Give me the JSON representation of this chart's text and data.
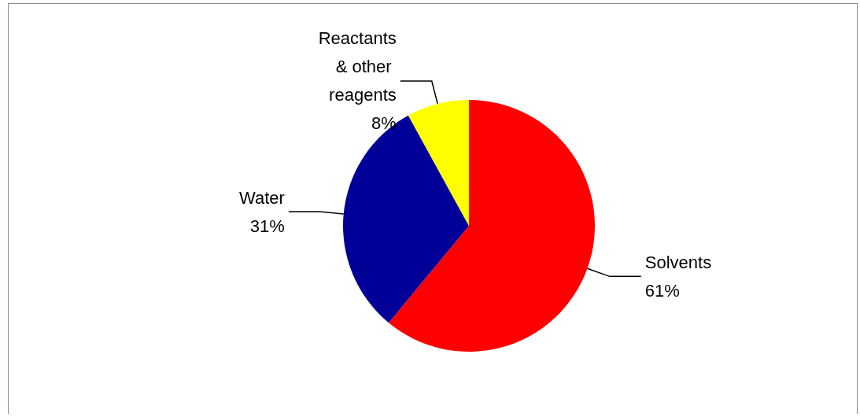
{
  "chart_data": {
    "type": "pie",
    "categories": [
      "Solvents",
      "Water",
      "Reactants & other reagents"
    ],
    "values": [
      61,
      31,
      8
    ],
    "value_labels": [
      "61%",
      "31%",
      "8%"
    ],
    "colors": [
      "#ff0000",
      "#000099",
      "#ffff00"
    ],
    "legend": false
  }
}
